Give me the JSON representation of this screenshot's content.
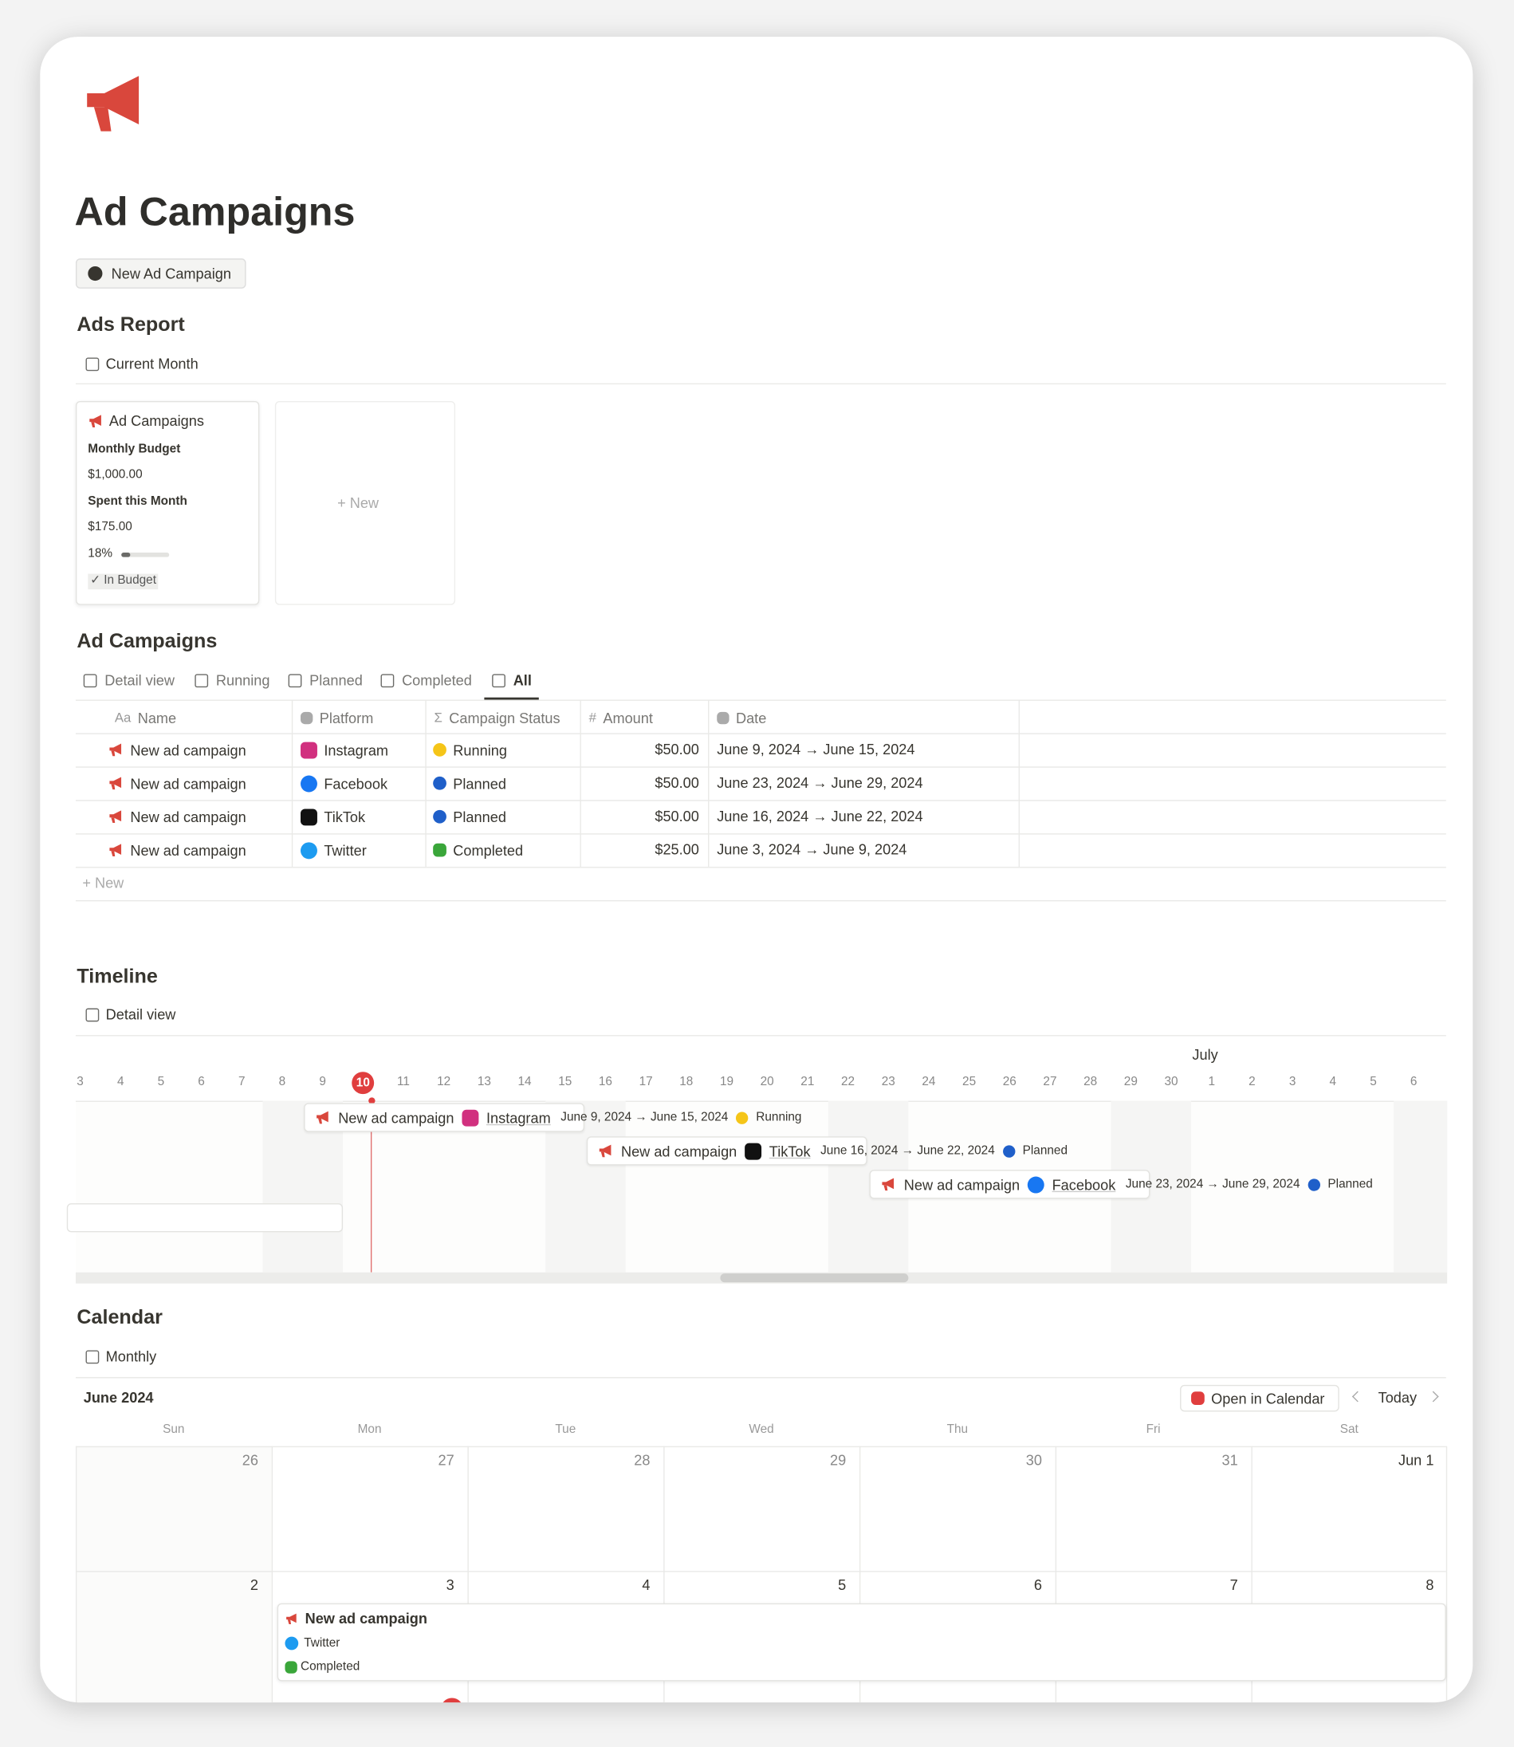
{
  "page": {
    "title": "Ad Campaigns",
    "new_button": "New Ad Campaign"
  },
  "ads_report": {
    "heading": "Ads Report",
    "view": "Current Month",
    "card": {
      "title": "Ad Campaigns",
      "budget_label": "Monthly Budget",
      "budget": "$1,000.00",
      "spent_label": "Spent this Month",
      "spent": "$175.00",
      "progress": 18,
      "progress_label": "18%",
      "status": "✓ In Budget"
    },
    "new_card": "+ New"
  },
  "campaigns": {
    "heading": "Ad Campaigns",
    "tabs": [
      "Detail view",
      "Running",
      "Planned",
      "Completed",
      "All"
    ],
    "columns": [
      {
        "icon": "Aa",
        "label": "Name"
      },
      {
        "label": "Platform"
      },
      {
        "icon": "Σ",
        "label": "Campaign Status"
      },
      {
        "icon": "#",
        "label": "Amount"
      },
      {
        "label": "Date"
      }
    ],
    "rows": [
      {
        "name": "New ad campaign",
        "platform": "Instagram",
        "platform_color": "#d1307f",
        "status": "Running",
        "status_color": "#f5c518",
        "amount": "$50.00",
        "date": "June 9, 2024 → June 15, 2024"
      },
      {
        "name": "New ad campaign",
        "platform": "Facebook",
        "platform_color": "#1877f2",
        "status": "Planned",
        "status_color": "#1f5fc9",
        "amount": "$50.00",
        "date": "June 23, 2024 → June 29, 2024"
      },
      {
        "name": "New ad campaign",
        "platform": "TikTok",
        "platform_color": "#111111",
        "status": "Planned",
        "status_color": "#1f5fc9",
        "amount": "$50.00",
        "date": "June 16, 2024 → June 22, 2024"
      },
      {
        "name": "New ad campaign",
        "platform": "Twitter",
        "platform_color": "#1d9bf0",
        "status": "Completed",
        "status_color": "#3aa63a",
        "amount": "$25.00",
        "date": "June 3, 2024 → June 9, 2024"
      }
    ],
    "new_row": "+ New"
  },
  "timeline": {
    "heading": "Timeline",
    "view": "Detail view",
    "month": "July",
    "days": [
      3,
      4,
      5,
      6,
      7,
      8,
      9,
      10,
      11,
      12,
      13,
      14,
      15,
      16,
      17,
      18,
      19,
      20,
      21,
      22,
      23,
      24,
      25,
      26,
      27,
      28,
      29,
      30,
      1,
      2,
      3,
      4,
      5,
      6
    ],
    "today": 10,
    "items": [
      {
        "name": "New ad campaign",
        "platform": "Instagram",
        "platform_color": "#d1307f",
        "date": "June 9, 2024 → June 15, 2024",
        "status": "Running",
        "status_color": "#f5c518"
      },
      {
        "name": "New ad campaign",
        "platform": "TikTok",
        "platform_color": "#111111",
        "date": "June 16, 2024 → June 22, 2024",
        "status": "Planned",
        "status_color": "#1f5fc9"
      },
      {
        "name": "New ad campaign",
        "platform": "Facebook",
        "platform_color": "#1877f2",
        "date": "June 23, 2024 → June 29, 2024",
        "status": "Planned",
        "status_color": "#1f5fc9"
      }
    ]
  },
  "calendar": {
    "heading": "Calendar",
    "view": "Monthly",
    "month": "June 2024",
    "open_button": "Open in Calendar",
    "today_button": "Today",
    "weekdays": [
      "Sun",
      "Mon",
      "Tue",
      "Wed",
      "Thu",
      "Fri",
      "Sat"
    ],
    "weeks": [
      [
        26,
        27,
        28,
        29,
        30,
        31,
        "Jun 1"
      ],
      [
        2,
        3,
        4,
        5,
        6,
        7,
        8
      ]
    ],
    "event": {
      "name": "New ad campaign",
      "platform": "Twitter",
      "platform_color": "#1d9bf0",
      "status": "Completed",
      "status_color": "#3aa63a"
    }
  }
}
